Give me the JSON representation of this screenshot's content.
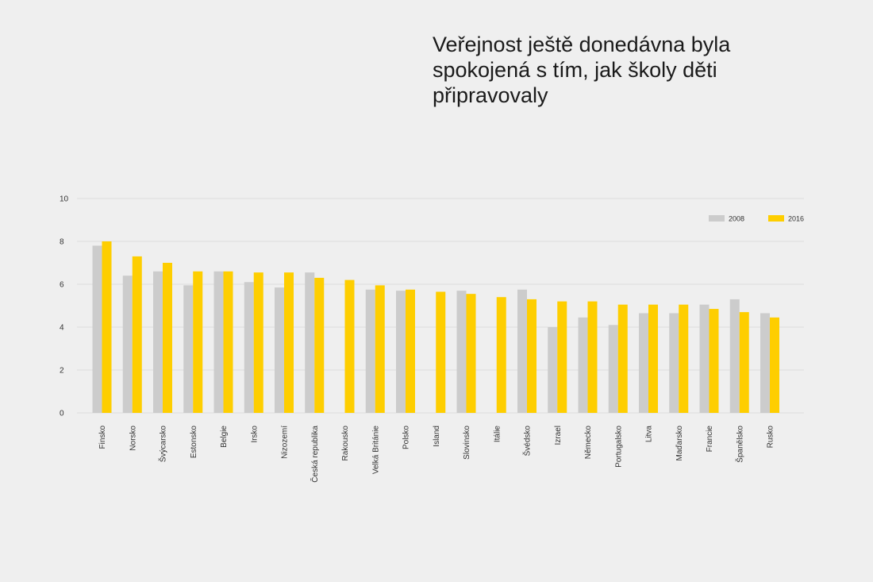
{
  "chart_data": {
    "type": "bar",
    "title": "Veřejnost ještě donedávna byla spokojená s tím, jak školy děti připravovaly",
    "xlabel": "",
    "ylabel": "",
    "ylim": [
      0,
      10
    ],
    "yticks": [
      0,
      2,
      4,
      6,
      8,
      10
    ],
    "grid": true,
    "legend_position": "top-right",
    "categories": [
      "Finsko",
      "Norsko",
      "Švýcarsko",
      "Estonsko",
      "Belgie",
      "Irsko",
      "Nizozemí",
      "Česká republika",
      "Rakousko",
      "Velká Británie",
      "Polsko",
      "Island",
      "Slovinsko",
      "Itálie",
      "Švédsko",
      "Izrael",
      "Německo",
      "Portugalsko",
      "Litva",
      "Maďarsko",
      "Francie",
      "Španělsko",
      "Rusko"
    ],
    "series": [
      {
        "name": "2008",
        "color": "#cccccc",
        "values": [
          7.8,
          6.4,
          6.6,
          5.95,
          6.6,
          6.1,
          5.85,
          6.55,
          null,
          5.75,
          5.7,
          null,
          5.7,
          null,
          5.75,
          4.0,
          4.45,
          4.1,
          4.65,
          4.65,
          5.05,
          5.3,
          4.65
        ]
      },
      {
        "name": "2016",
        "color": "#fece00",
        "values": [
          8.0,
          7.3,
          7.0,
          6.6,
          6.6,
          6.55,
          6.55,
          6.3,
          6.2,
          5.95,
          5.75,
          5.65,
          5.55,
          5.4,
          5.3,
          5.2,
          5.2,
          5.05,
          5.05,
          5.05,
          4.85,
          4.7,
          4.45
        ]
      }
    ]
  }
}
